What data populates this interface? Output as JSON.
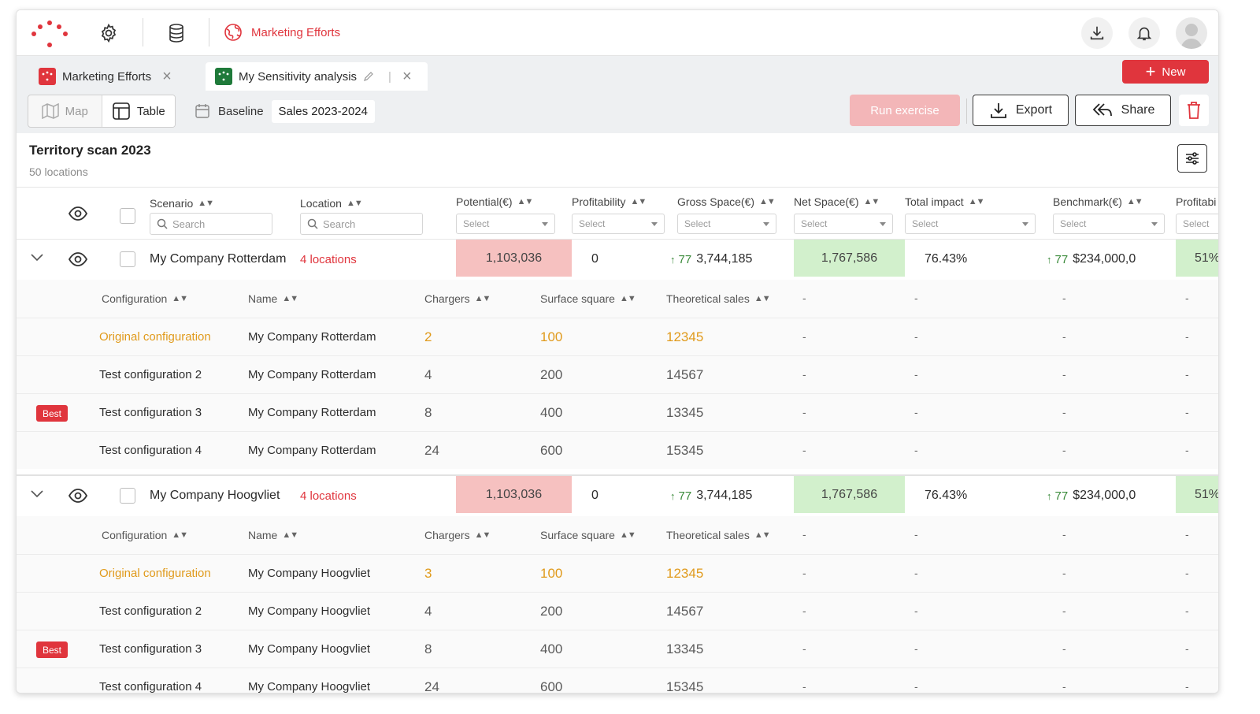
{
  "app": {
    "breadcrumb": "Marketing Efforts",
    "brand_color": "#e0353d"
  },
  "tabs": [
    {
      "label": "Marketing Efforts",
      "icon": "red-grid-icon"
    },
    {
      "label": "My Sensitivity analysis",
      "icon": "green-grid-icon"
    }
  ],
  "toolbar": {
    "map_label": "Map",
    "table_label": "Table",
    "baseline_label": "Baseline",
    "baseline_value": "Sales 2023-2024",
    "run_label": "Run exercise",
    "export_label": "Export",
    "share_label": "Share",
    "new_label": "New"
  },
  "page": {
    "title": "Territory scan 2023",
    "subtitle": "50 locations"
  },
  "columns": {
    "scenario": "Scenario",
    "location": "Location",
    "potential": "Potential(€)",
    "profitability": "Profitability",
    "gross_space": "Gross Space(€)",
    "net_space": "Net Space(€)",
    "total_impact": "Total impact",
    "benchmark": "Benchmark(€)",
    "profitability2": "Profitabi",
    "search_placeholder": "Search",
    "select_placeholder": "Select"
  },
  "sub_columns": {
    "configuration": "Configuration",
    "name": "Name",
    "chargers": "Chargers",
    "surface": "Surface square",
    "theoretical": "Theoretical sales"
  },
  "groups": [
    {
      "name": "My Company Rotterdam",
      "locations": "4 locations",
      "potential": "1,103,036",
      "profitability": "0",
      "gross_trend": "77",
      "gross_space": "3,744,185",
      "net_space": "1,767,586",
      "total_impact": "76.43%",
      "bench_trend": "77",
      "benchmark": "$234,000,0",
      "profitability2": "51%",
      "rows": [
        {
          "config": "Original configuration",
          "name": "My Company Rotterdam",
          "chargers": "2",
          "surface": "100",
          "sales": "12345"
        },
        {
          "config": "Test configuration 2",
          "name": "My Company Rotterdam",
          "chargers": "4",
          "surface": "200",
          "sales": "14567"
        },
        {
          "config": "Test configuration 3",
          "name": "My Company Rotterdam",
          "chargers": "8",
          "surface": "400",
          "sales": "13345",
          "badge": "Best"
        },
        {
          "config": "Test configuration 4",
          "name": "My Company Rotterdam",
          "chargers": "24",
          "surface": "600",
          "sales": "15345"
        }
      ]
    },
    {
      "name": "My Company Hoogvliet",
      "locations": "4 locations",
      "potential": "1,103,036",
      "profitability": "0",
      "gross_trend": "77",
      "gross_space": "3,744,185",
      "net_space": "1,767,586",
      "total_impact": "76.43%",
      "bench_trend": "77",
      "benchmark": "$234,000,0",
      "profitability2": "51%",
      "rows": [
        {
          "config": "Original configuration",
          "name": "My Company Hoogvliet",
          "chargers": "3",
          "surface": "100",
          "sales": "12345"
        },
        {
          "config": "Test configuration 2",
          "name": "My Company Hoogvliet",
          "chargers": "4",
          "surface": "200",
          "sales": "14567"
        },
        {
          "config": "Test configuration 3",
          "name": "My Company Hoogvliet",
          "chargers": "8",
          "surface": "400",
          "sales": "13345",
          "badge": "Best"
        },
        {
          "config": "Test configuration 4",
          "name": "My Company Hoogvliet",
          "chargers": "24",
          "surface": "600",
          "sales": "15345"
        }
      ]
    }
  ],
  "dash": "-"
}
